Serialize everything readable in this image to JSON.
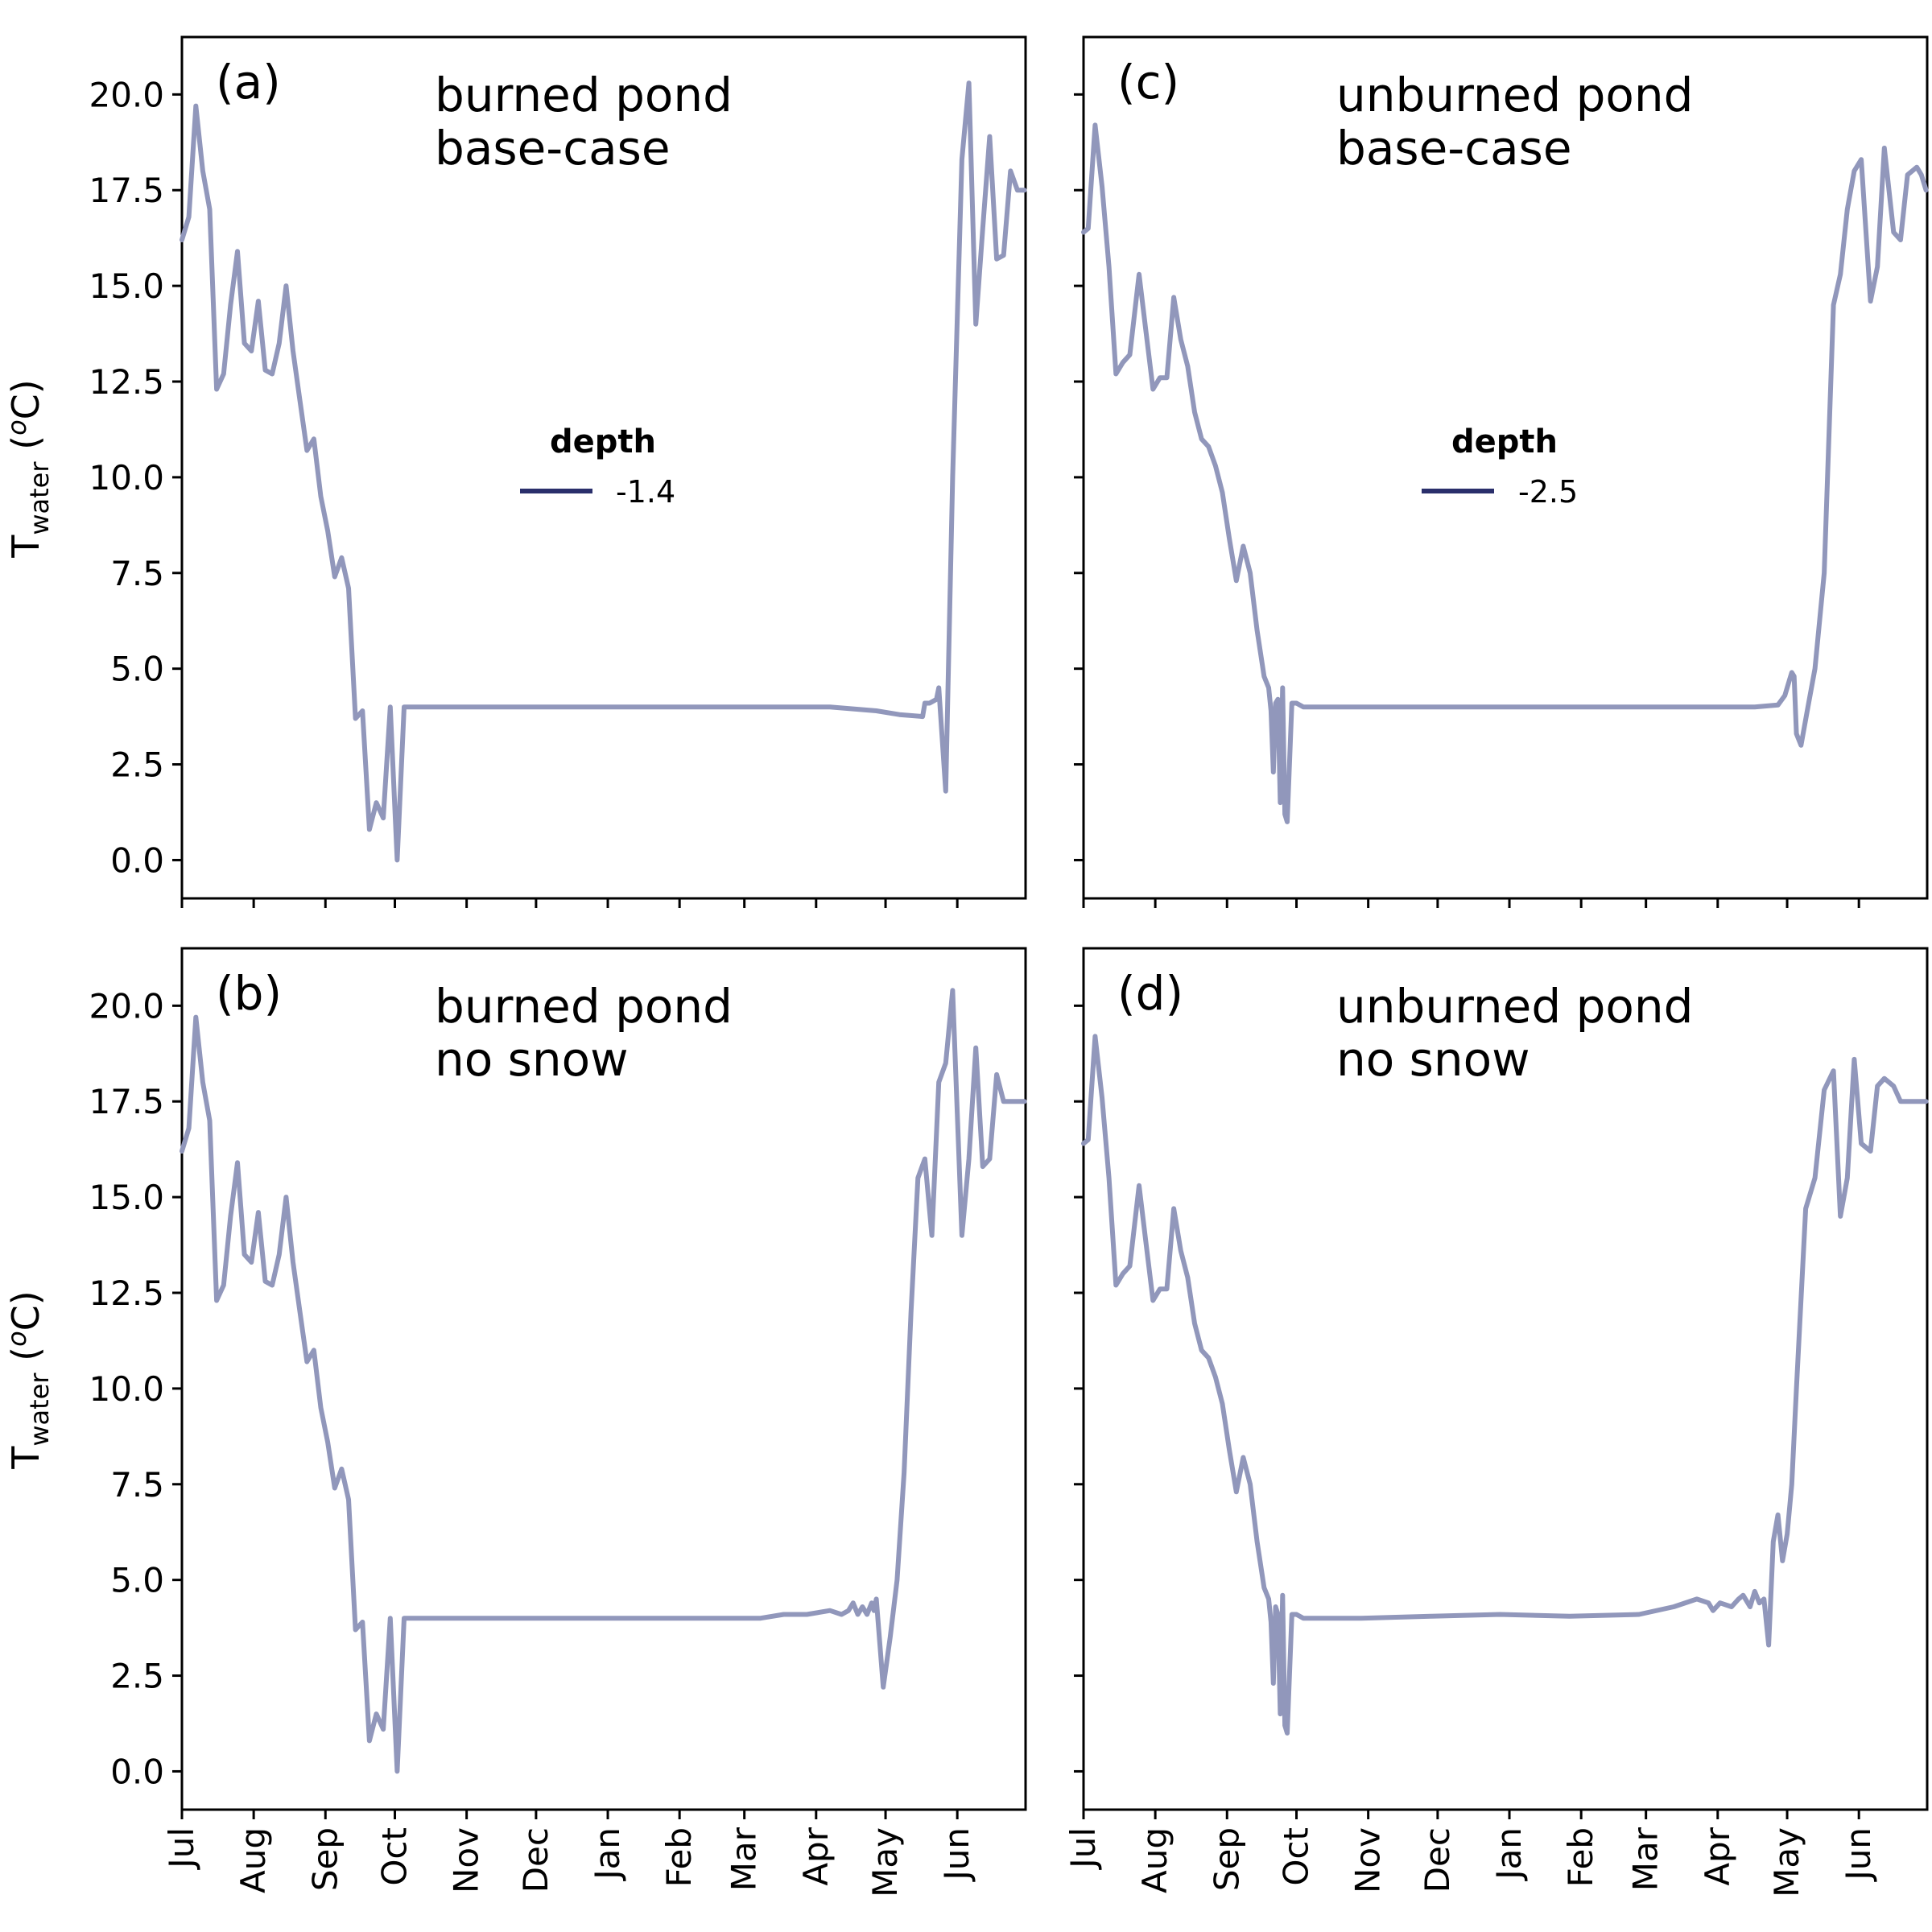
{
  "chart_data": [
    {
      "type": "line",
      "panel_label": "(a)",
      "annotation": [
        "burned pond",
        "base-case"
      ],
      "ylabel": "T_water (oC)",
      "ylim": [
        -1.0,
        21.5
      ],
      "yticks": [
        "0.0",
        "2.5",
        "5.0",
        "7.5",
        "10.0",
        "12.5",
        "15.0",
        "17.5",
        "20.0"
      ],
      "xticks": [],
      "legend": {
        "title": "depth",
        "entry": "-1.4",
        "color": "#2a2f6b"
      },
      "series": [
        {
          "color": "#9197bb",
          "x": [
            0,
            3,
            6,
            9,
            12,
            15,
            18,
            21,
            24,
            27,
            30,
            33,
            36,
            39,
            42,
            45,
            48,
            51,
            54,
            57,
            60,
            63,
            66,
            69,
            72,
            75,
            78,
            81,
            84,
            87,
            90,
            93,
            96,
            99,
            102,
            105,
            108,
            111,
            114,
            117,
            118,
            120,
            121,
            124,
            130,
            180,
            240,
            280,
            300,
            310,
            320,
            321,
            323,
            326,
            327,
            330,
            333,
            337,
            340,
            343,
            346,
            349,
            352,
            355,
            358,
            361,
            364
          ],
          "values": [
            16.2,
            16.8,
            19.7,
            18.0,
            17.0,
            12.3,
            12.7,
            14.5,
            15.9,
            13.5,
            13.3,
            14.6,
            12.8,
            12.7,
            13.5,
            15.0,
            13.3,
            12.0,
            10.7,
            11.0,
            9.5,
            8.6,
            7.4,
            7.9,
            7.1,
            3.7,
            3.9,
            0.8,
            1.5,
            1.1,
            4.0,
            0.0,
            4.0,
            4.0,
            4.0,
            4.0,
            4.0,
            4.0,
            4.0,
            4.0,
            4.0,
            4.0,
            4.0,
            4.0,
            4.0,
            4.0,
            4.0,
            4.0,
            3.9,
            3.8,
            3.75,
            4.1,
            4.1,
            4.2,
            4.5,
            1.8,
            10.0,
            18.3,
            20.3,
            14.0,
            16.5,
            18.9,
            15.7,
            15.8,
            18.0,
            17.5,
            17.5
          ]
        }
      ]
    },
    {
      "type": "line",
      "panel_label": "(c)",
      "annotation": [
        "unburned pond",
        "base-case"
      ],
      "ylabel": "",
      "ylim": [
        -1.0,
        21.5
      ],
      "yticks": [],
      "xticks": [],
      "legend": {
        "title": "depth",
        "entry": "-2.5",
        "color": "#2a2f6b"
      },
      "series": [
        {
          "color": "#9197bb",
          "x": [
            0,
            2,
            5,
            8,
            11,
            14,
            17,
            20,
            24,
            27,
            30,
            33,
            36,
            39,
            42,
            45,
            48,
            51,
            54,
            57,
            60,
            63,
            66,
            69,
            72,
            75,
            78,
            80,
            81,
            82,
            83,
            84,
            85,
            86,
            87,
            88,
            90,
            92,
            95,
            100,
            120,
            180,
            240,
            290,
            300,
            303,
            305,
            306,
            307,
            308,
            310,
            313,
            316,
            320,
            324,
            327,
            330,
            333,
            336,
            340,
            343,
            346,
            350,
            353,
            356,
            360,
            362,
            364
          ],
          "values": [
            16.4,
            16.5,
            19.2,
            17.6,
            15.5,
            12.7,
            13.0,
            13.2,
            15.3,
            13.8,
            12.3,
            12.6,
            12.6,
            14.7,
            13.6,
            12.9,
            11.7,
            11.0,
            10.8,
            10.3,
            9.6,
            8.4,
            7.3,
            8.2,
            7.5,
            6.0,
            4.8,
            4.5,
            3.9,
            2.3,
            4.1,
            4.2,
            1.5,
            4.5,
            1.2,
            1.0,
            4.1,
            4.1,
            4.0,
            4.0,
            4.0,
            4.0,
            4.0,
            4.0,
            4.05,
            4.3,
            4.7,
            4.9,
            4.8,
            3.3,
            3.0,
            4.0,
            5.0,
            7.5,
            14.5,
            15.3,
            17.0,
            18.0,
            18.3,
            14.6,
            15.5,
            18.6,
            16.4,
            16.2,
            17.9,
            18.1,
            17.9,
            17.5
          ]
        }
      ]
    },
    {
      "type": "line",
      "panel_label": "(b)",
      "annotation": [
        "burned pond",
        "no snow"
      ],
      "ylabel": "T_water (oC)",
      "ylim": [
        -1.0,
        21.5
      ],
      "yticks": [
        "0.0",
        "2.5",
        "5.0",
        "7.5",
        "10.0",
        "12.5",
        "15.0",
        "17.5",
        "20.0"
      ],
      "xticks": [
        "Jul",
        "Aug",
        "Sep",
        "Oct",
        "Nov",
        "Dec",
        "Jan",
        "Feb",
        "Mar",
        "Apr",
        "May",
        "Jun"
      ],
      "legend": null,
      "series": [
        {
          "color": "#9197bb",
          "x": [
            0,
            3,
            6,
            9,
            12,
            15,
            18,
            21,
            24,
            27,
            30,
            33,
            36,
            39,
            42,
            45,
            48,
            51,
            54,
            57,
            60,
            63,
            66,
            69,
            72,
            75,
            78,
            81,
            84,
            87,
            90,
            93,
            96,
            99,
            102,
            110,
            130,
            150,
            170,
            200,
            230,
            250,
            260,
            270,
            280,
            285,
            288,
            290,
            292,
            294,
            296,
            298,
            299,
            300,
            303,
            306,
            309,
            312,
            315,
            318,
            321,
            324,
            327,
            330,
            333,
            337,
            340,
            343,
            346,
            349,
            352,
            355,
            358,
            361,
            364
          ],
          "values": [
            16.2,
            16.8,
            19.7,
            18.0,
            17.0,
            12.3,
            12.7,
            14.5,
            15.9,
            13.5,
            13.3,
            14.6,
            12.8,
            12.7,
            13.5,
            15.0,
            13.3,
            12.0,
            10.7,
            11.0,
            9.5,
            8.6,
            7.4,
            7.9,
            7.1,
            3.7,
            3.9,
            0.8,
            1.5,
            1.1,
            4.0,
            0.0,
            4.0,
            4.0,
            4.0,
            4.0,
            4.0,
            4.0,
            4.0,
            4.0,
            4.0,
            4.0,
            4.1,
            4.1,
            4.2,
            4.1,
            4.2,
            4.4,
            4.1,
            4.3,
            4.1,
            4.4,
            4.2,
            4.5,
            2.2,
            3.5,
            5.0,
            7.8,
            12.0,
            15.5,
            16.0,
            14.0,
            18.0,
            18.5,
            20.4,
            14.0,
            16.0,
            18.9,
            15.8,
            16.0,
            18.2,
            17.5,
            17.5,
            17.5,
            17.5
          ]
        }
      ]
    },
    {
      "type": "line",
      "panel_label": "(d)",
      "annotation": [
        "unburned pond",
        "no snow"
      ],
      "ylabel": "",
      "ylim": [
        -1.0,
        21.5
      ],
      "yticks": [],
      "xticks": [
        "Jul",
        "Aug",
        "Sep",
        "Oct",
        "Nov",
        "Dec",
        "Jan",
        "Feb",
        "Mar",
        "Apr",
        "May",
        "Jun"
      ],
      "legend": null,
      "series": [
        {
          "color": "#9197bb",
          "x": [
            0,
            2,
            5,
            8,
            11,
            14,
            17,
            20,
            24,
            27,
            30,
            33,
            36,
            39,
            42,
            45,
            48,
            51,
            54,
            57,
            60,
            63,
            66,
            69,
            72,
            75,
            78,
            80,
            81,
            82,
            83,
            84,
            85,
            86,
            87,
            88,
            90,
            92,
            95,
            100,
            120,
            150,
            180,
            210,
            240,
            255,
            265,
            270,
            272,
            275,
            280,
            283,
            285,
            288,
            290,
            292,
            294,
            296,
            298,
            300,
            302,
            304,
            306,
            308,
            312,
            316,
            320,
            324,
            327,
            330,
            333,
            336,
            340,
            343,
            346,
            350,
            353,
            356,
            360,
            362,
            364
          ],
          "values": [
            16.4,
            16.5,
            19.2,
            17.6,
            15.5,
            12.7,
            13.0,
            13.2,
            15.3,
            13.8,
            12.3,
            12.6,
            12.6,
            14.7,
            13.6,
            12.9,
            11.7,
            11.0,
            10.8,
            10.3,
            9.6,
            8.4,
            7.3,
            8.2,
            7.5,
            6.0,
            4.8,
            4.5,
            3.9,
            2.3,
            4.3,
            4.1,
            1.5,
            4.6,
            1.2,
            1.0,
            4.1,
            4.1,
            4.0,
            4.0,
            4.0,
            4.05,
            4.1,
            4.05,
            4.1,
            4.3,
            4.5,
            4.4,
            4.2,
            4.4,
            4.3,
            4.5,
            4.6,
            4.3,
            4.7,
            4.4,
            4.5,
            3.3,
            6.0,
            6.7,
            5.5,
            6.2,
            7.5,
            10.0,
            14.7,
            15.5,
            17.8,
            18.3,
            14.5,
            15.5,
            18.6,
            16.4,
            16.2,
            17.9,
            18.1,
            17.9,
            17.5,
            17.5,
            17.5,
            17.5,
            17.5
          ]
        }
      ]
    }
  ]
}
